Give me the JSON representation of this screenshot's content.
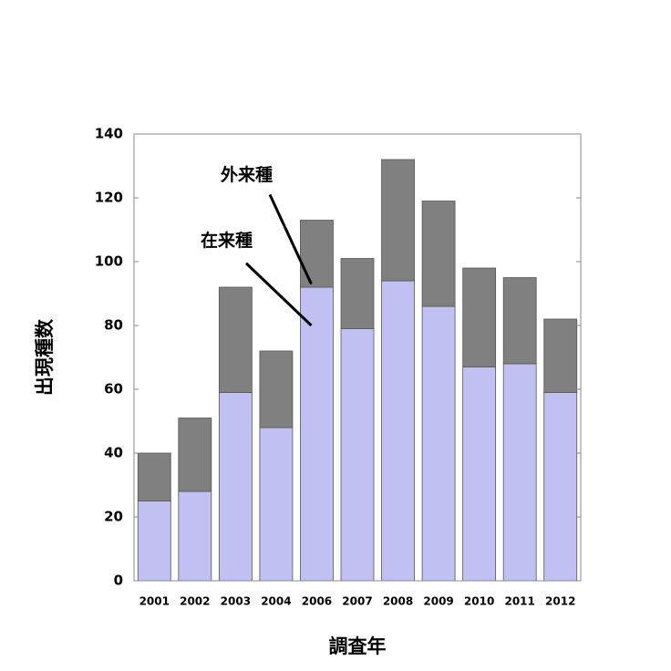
{
  "chart_data": {
    "type": "bar",
    "stacked": true,
    "xlabel": "調査年",
    "ylabel": "出現種数",
    "ylim": [
      0,
      140
    ],
    "yticks": [
      0,
      20,
      40,
      60,
      80,
      100,
      120,
      140
    ],
    "grid": false,
    "categories": [
      "2001",
      "2002",
      "2003",
      "2004",
      "2006",
      "2007",
      "2008",
      "2009",
      "2010",
      "2011",
      "2012"
    ],
    "series": [
      {
        "name": "在来種",
        "color": "#c0c0f2",
        "values": [
          25,
          28,
          59,
          48,
          92,
          79,
          94,
          86,
          67,
          68,
          59
        ]
      },
      {
        "name": "外来種",
        "color": "#808080",
        "values": [
          15,
          23,
          33,
          24,
          21,
          22,
          38,
          33,
          31,
          27,
          23
        ]
      }
    ],
    "annotations": [
      {
        "text": "外来種",
        "series": "外来種"
      },
      {
        "text": "在来種",
        "series": "在来種"
      }
    ]
  }
}
